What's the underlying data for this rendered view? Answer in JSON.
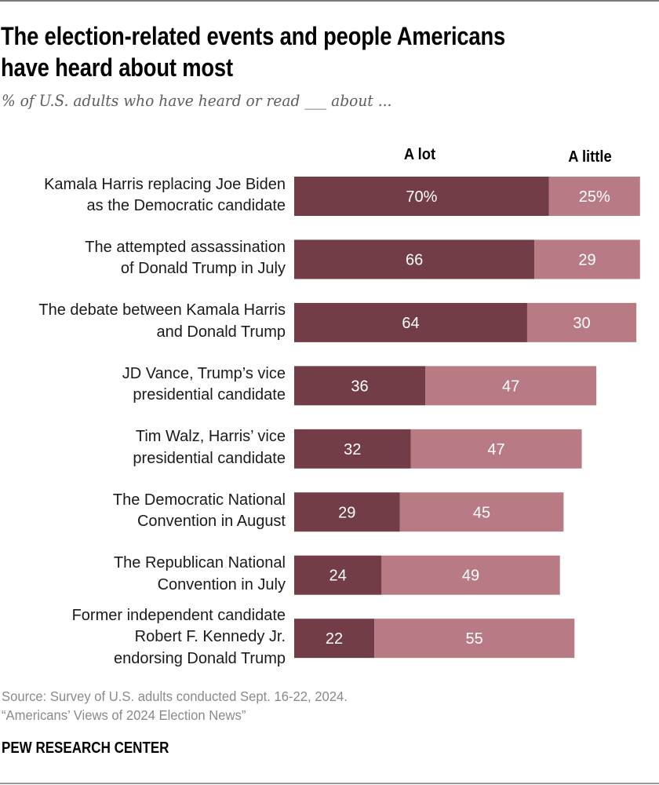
{
  "chart_data": {
    "type": "bar",
    "orientation": "horizontal",
    "stacked": true,
    "title": "The election-related events and people Americans have heard about most",
    "title_lines": [
      "The election-related events and people Americans",
      "have heard about most"
    ],
    "subtitle": "% of U.S. adults who have heard or read ___ about ...",
    "xlabel": "",
    "ylabel": "",
    "xlim": [
      0,
      100
    ],
    "grid": false,
    "legend_placement": "top",
    "categories": [
      "Kamala Harris replacing Joe Biden as the Democratic candidate",
      "The attempted assassination of Donald Trump in July",
      "The debate between Kamala Harris and Donald Trump",
      "JD Vance, Trump’s vice presidential candidate",
      "Tim Walz, Harris’ vice presidential candidate",
      "The Democratic National Convention in August",
      "The Republican National Convention in July",
      "Former independent candidate Robert F. Kennedy Jr. endorsing Donald Trump"
    ],
    "category_lines": [
      [
        "Kamala Harris replacing Joe Biden",
        "as the Democratic candidate"
      ],
      [
        "The attempted assassination",
        "of Donald Trump in July"
      ],
      [
        "The debate between Kamala Harris",
        "and Donald Trump"
      ],
      [
        "JD Vance, Trump’s vice",
        "presidential candidate"
      ],
      [
        "Tim Walz, Harris’ vice",
        "presidential candidate"
      ],
      [
        "The Democratic National",
        "Convention in August"
      ],
      [
        "The Republican National",
        "Convention in July"
      ],
      [
        "Former independent candidate",
        "Robert F. Kennedy Jr.",
        "endorsing Donald Trump"
      ]
    ],
    "series": [
      {
        "name": "A lot",
        "color": "#733D47",
        "values": [
          70,
          66,
          64,
          36,
          32,
          29,
          24,
          22
        ],
        "labels": [
          "70%",
          "66",
          "64",
          "36",
          "32",
          "29",
          "24",
          "22"
        ]
      },
      {
        "name": "A little",
        "color": "#B97B83",
        "values": [
          25,
          29,
          30,
          47,
          47,
          45,
          49,
          55
        ],
        "labels": [
          "25%",
          "29",
          "30",
          "47",
          "47",
          "45",
          "49",
          "55"
        ]
      }
    ]
  },
  "footer": {
    "source_line": "Source: Survey of U.S. adults conducted Sept. 16-22, 2024.",
    "report_line": "“Americans’ Views of 2024 Election News”",
    "brand": "PEW RESEARCH CENTER"
  }
}
